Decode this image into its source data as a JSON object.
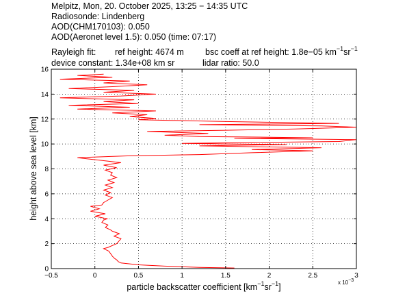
{
  "header": {
    "line1": "Melpitz, Mon, 20. October 2025, 13:25 − 14:35 UTC",
    "line2": "Radiosonde: Lindenberg",
    "line3": "AOD(CHM170103): 0.050",
    "line4": "AOD(Aeronet level 1.5): 0.050   (time: 07:17)",
    "rayleigh_label": "Rayleigh fit:",
    "ref_height": "ref height: 4674 m",
    "bsc_coeff_prefix": "bsc coeff at ref height: 1.8e−05 km",
    "sup1": "−1",
    "sr": "sr",
    "sup2": "−1",
    "device_constant": "device constant: 1.34e+08 km sr",
    "lidar_ratio": "lidar ratio: 50.0"
  },
  "chart_data": {
    "type": "line",
    "title": "",
    "xlabel": {
      "prefix": "particle backscatter coefficient [km",
      "sup1": "−1",
      "mid": "sr",
      "sup2": "−1",
      "suffix": "]"
    },
    "ylabel": "height above sea level [km]",
    "xlim": [
      -0.0005,
      0.003
    ],
    "ylim": [
      0,
      16
    ],
    "x_scale_label": "x 10",
    "x_scale_exp": "−3",
    "xticks": [
      -0.5,
      0,
      0.5,
      1,
      1.5,
      2,
      2.5,
      3
    ],
    "xtick_labels": [
      "−0.5",
      "0",
      "0.5",
      "1",
      "1.5",
      "2",
      "2.5",
      "3"
    ],
    "yticks": [
      0,
      2,
      4,
      6,
      8,
      10,
      12,
      14,
      16
    ],
    "ytick_labels": [
      "0",
      "2",
      "4",
      "6",
      "8",
      "10",
      "12",
      "14",
      "16"
    ],
    "grid": true,
    "series": [
      {
        "color": "#ff0000",
        "points": [
          [
            0.0016,
            0.05
          ],
          [
            0.0012,
            0.1
          ],
          [
            0.0008,
            0.2
          ],
          [
            0.0005,
            0.3
          ],
          [
            0.0003,
            0.45
          ],
          [
            0.00027,
            0.55
          ],
          [
            0.00025,
            0.7
          ],
          [
            0.00022,
            0.85
          ],
          [
            0.0002,
            1.0
          ],
          [
            0.00018,
            1.2
          ],
          [
            0.00016,
            1.4
          ],
          [
            0.0001,
            1.6
          ],
          [
            0.00015,
            1.7
          ],
          [
            0.00025,
            2.0
          ],
          [
            0.0003,
            2.4
          ],
          [
            0.00022,
            2.6
          ],
          [
            0.00028,
            2.8
          ],
          [
            0.0002,
            3.0
          ],
          [
            0.00018,
            3.1
          ],
          [
            0.00012,
            3.3
          ],
          [
            0.00015,
            3.5
          ],
          [
            8e-05,
            3.7
          ],
          [
            0.0001,
            3.9
          ],
          [
            0.00014,
            4.0
          ],
          [
            0.0,
            4.2
          ],
          [
            0.00012,
            4.4
          ],
          [
            -5e-05,
            4.6
          ],
          [
            5e-05,
            4.8
          ],
          [
            -5e-05,
            5.0
          ],
          [
            8e-05,
            5.1
          ],
          [
            0.0001,
            5.3
          ],
          [
            0.00015,
            5.5
          ],
          [
            0.0002,
            5.7
          ],
          [
            0.00012,
            5.9
          ],
          [
            0.00018,
            6.1
          ],
          [
            0.0001,
            6.3
          ],
          [
            0.0002,
            6.5
          ],
          [
            0.00012,
            6.7
          ],
          [
            0.00022,
            6.9
          ],
          [
            0.00015,
            7.1
          ],
          [
            0.00025,
            7.3
          ],
          [
            0.00018,
            7.5
          ],
          [
            0.0002,
            7.7
          ],
          [
            0.00012,
            7.9
          ],
          [
            0.00025,
            8.1
          ],
          [
            0.0001,
            8.3
          ],
          [
            0.0003,
            8.5
          ],
          [
            5e-05,
            8.7
          ],
          [
            -0.0002,
            8.9
          ],
          [
            0.0004,
            9.05
          ],
          [
            0.0012,
            9.15
          ],
          [
            0.0018,
            9.3
          ],
          [
            0.0025,
            9.45
          ],
          [
            0.0018,
            9.55
          ],
          [
            0.0026,
            9.7
          ],
          [
            0.0012,
            9.85
          ],
          [
            0.0022,
            9.95
          ],
          [
            0.001,
            10.05
          ],
          [
            0.0028,
            10.2
          ],
          [
            0.003,
            10.35
          ],
          [
            0.0016,
            10.45
          ],
          [
            0.0025,
            10.5
          ],
          [
            0.0012,
            10.6
          ],
          [
            0.0008,
            10.7
          ],
          [
            0.0013,
            10.85
          ],
          [
            0.0006,
            11.0
          ],
          [
            0.0015,
            11.1
          ],
          [
            0.0023,
            11.2
          ],
          [
            0.003,
            11.35
          ],
          [
            0.0026,
            11.45
          ],
          [
            0.0012,
            11.55
          ],
          [
            0.0028,
            11.65
          ],
          [
            0.0015,
            11.8
          ],
          [
            0.0005,
            11.95
          ],
          [
            0.0007,
            12.05
          ],
          [
            0.0004,
            12.2
          ],
          [
            0.0006,
            12.35
          ],
          [
            0.0002,
            12.5
          ],
          [
            0.0007,
            12.65
          ],
          [
            -0.0002,
            12.8
          ],
          [
            0.0004,
            12.95
          ],
          [
            -0.0003,
            13.1
          ],
          [
            0.0005,
            13.25
          ],
          [
            0.0001,
            13.4
          ],
          [
            0.00045,
            13.55
          ],
          [
            -0.0004,
            13.7
          ],
          [
            0.0003,
            13.85
          ],
          [
            0.0007,
            14.0
          ],
          [
            0.0001,
            14.15
          ],
          [
            0.00045,
            14.3
          ],
          [
            -0.0003,
            14.45
          ],
          [
            0.0002,
            14.6
          ],
          [
            0.0006,
            14.75
          ],
          [
            0.0001,
            14.9
          ],
          [
            0.0004,
            15.05
          ],
          [
            -0.0004,
            15.2
          ],
          [
            0.0002,
            15.35
          ],
          [
            -0.0002,
            15.5
          ],
          [
            0.0001,
            15.6
          ]
        ]
      }
    ]
  }
}
